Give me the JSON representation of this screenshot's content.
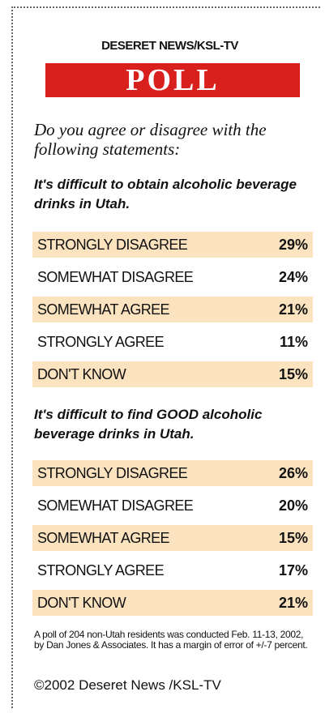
{
  "header": {
    "outlet": "DESERET NEWS/KSL-TV",
    "banner": "POLL",
    "intro": "Do you agree or disagree with the following statements:"
  },
  "chart_data": {
    "type": "table",
    "title": "POLL",
    "questions": [
      {
        "statement": "It's difficult to obtain alcoholic beverage drinks in Utah.",
        "rows": [
          {
            "label": "STRONGLY DISAGREE",
            "value": "29%"
          },
          {
            "label": "SOMEWHAT DISAGREE",
            "value": "24%"
          },
          {
            "label": "SOMEWHAT AGREE",
            "value": "21%"
          },
          {
            "label": "STRONGLY AGREE",
            "value": "11%"
          },
          {
            "label": "DON'T KNOW",
            "value": "15%"
          }
        ]
      },
      {
        "statement": "It's difficult to find GOOD alcoholic beverage drinks in Utah.",
        "rows": [
          {
            "label": "STRONGLY DISAGREE",
            "value": "26%"
          },
          {
            "label": "SOMEWHAT DISAGREE",
            "value": "20%"
          },
          {
            "label": "SOMEWHAT AGREE",
            "value": "15%"
          },
          {
            "label": "STRONGLY AGREE",
            "value": "17%"
          },
          {
            "label": "DON'T KNOW",
            "value": "21%"
          }
        ]
      }
    ]
  },
  "footer": {
    "note": "A poll of 204 non-Utah residents was conducted Feb. 11-13, 2002, by Dan Jones & Associates. It has a margin of error of +/-7 percent.",
    "credit": "©2002 Deseret News /KSL-TV"
  },
  "colors": {
    "banner": "#d8201c",
    "row_shade": "#fbe3bf",
    "text": "#111111"
  }
}
